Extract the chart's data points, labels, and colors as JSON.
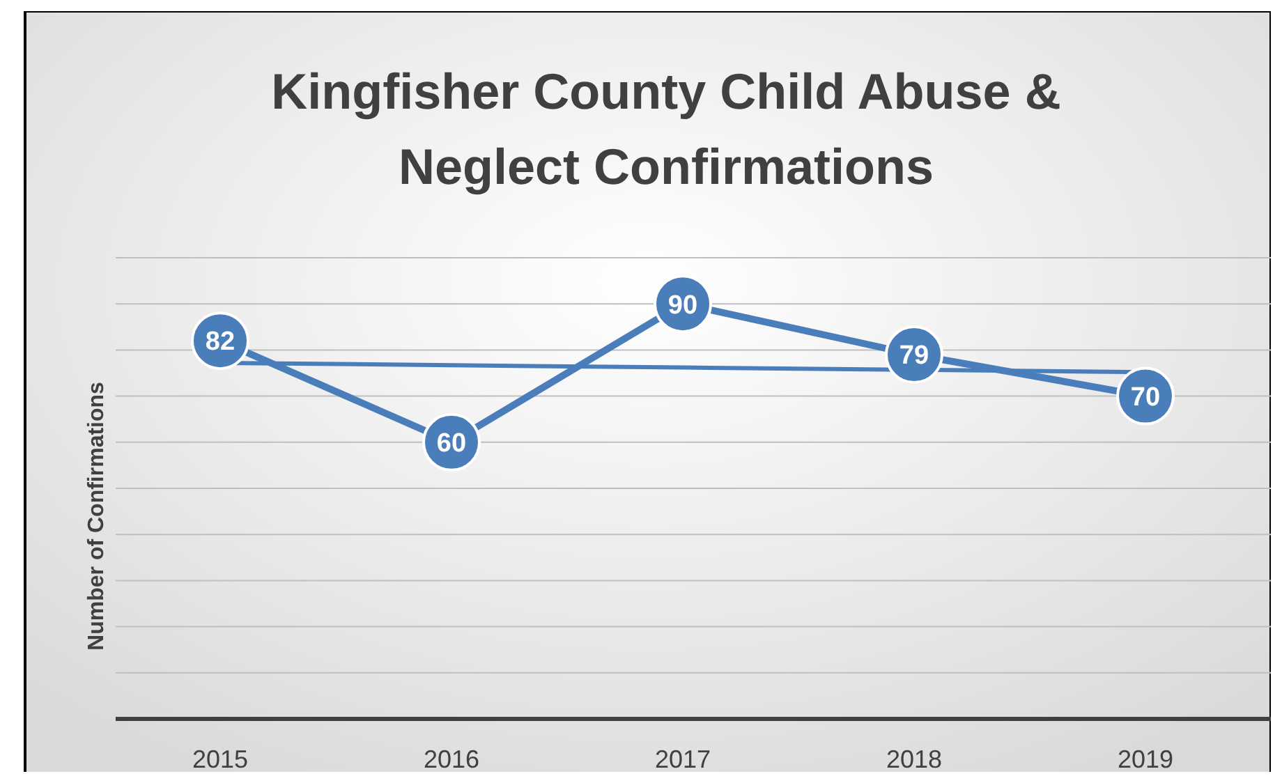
{
  "chart_data": {
    "type": "line",
    "title": "Kingfisher County Child Abuse & Neglect Confirmations",
    "ylabel": "Number of Confirmations",
    "categories": [
      "2015",
      "2016",
      "2017",
      "2018",
      "2019"
    ],
    "series": [
      {
        "color": "#4a7ebb",
        "values": [
          82,
          60,
          90,
          79,
          70
        ],
        "marker": "circle",
        "data_labels": true
      },
      {
        "type": "line",
        "color": "#4a7ebb",
        "values": [
          77.2,
          76.7,
          76.2,
          75.7,
          75.2
        ],
        "marker": "none"
      }
    ],
    "ylim": [
      0,
      100
    ],
    "yticks": [
      {
        "value": 0,
        "label": null
      },
      {
        "value": 10,
        "label": null
      },
      {
        "value": 20,
        "label": null
      },
      {
        "value": 30,
        "label": null
      },
      {
        "value": 40,
        "label": null
      },
      {
        "value": 50,
        "label": null
      },
      {
        "value": 60,
        "label": null
      },
      {
        "value": 70,
        "label": null
      },
      {
        "value": 80,
        "label": null
      },
      {
        "value": 90,
        "label": null
      },
      {
        "value": 100,
        "label": null
      }
    ],
    "grid": "y",
    "tick_labels": "x",
    "line_style": "solid"
  }
}
